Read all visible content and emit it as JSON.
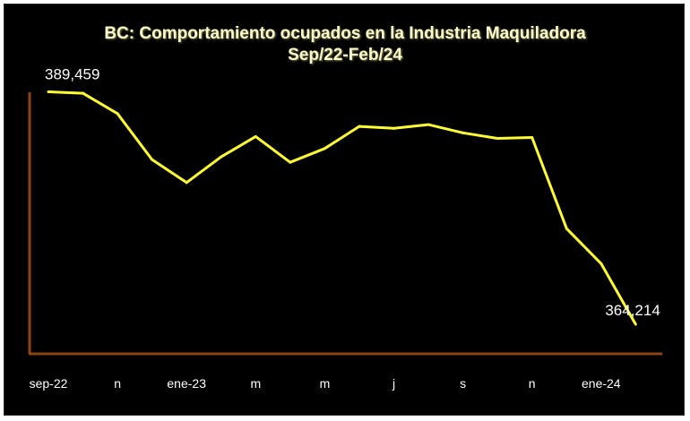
{
  "chart_data": {
    "type": "line",
    "title": "BC: Comportamiento ocupados en la Industria Maquiladora",
    "subtitle": "Sep/22-Feb/24",
    "xlabel": "",
    "ylabel": "",
    "legend": "none",
    "grid": false,
    "colors": {
      "line": "#ffff33",
      "axis": "#8b4513",
      "background": "#000000",
      "text": "#ffffff"
    },
    "x": [
      "sep-22",
      "oct-22",
      "nov-22",
      "dic-22",
      "ene-23",
      "feb-23",
      "mar-23",
      "abr-23",
      "may-23",
      "jun-23",
      "jul-23",
      "ago-23",
      "sep-23",
      "oct-23",
      "nov-23",
      "dic-23",
      "ene-24",
      "feb-24"
    ],
    "tick_labels": [
      "sep-22",
      "",
      "n",
      "",
      "ene-23",
      "",
      "m",
      "",
      "m",
      "",
      "j",
      "",
      "s",
      "",
      "n",
      "",
      "ene-24",
      ""
    ],
    "series": [
      {
        "values": [
          389459,
          389300,
          387100,
          382100,
          379600,
          382400,
          384600,
          381800,
          383300,
          385700,
          385500,
          385900,
          385000,
          384400,
          384500,
          374600,
          370800,
          364214
        ]
      }
    ],
    "data_labels": [
      {
        "index": 0,
        "text": "389,459"
      },
      {
        "index": 17,
        "text": "364,214"
      }
    ],
    "ylim": [
      361000,
      397000
    ]
  }
}
